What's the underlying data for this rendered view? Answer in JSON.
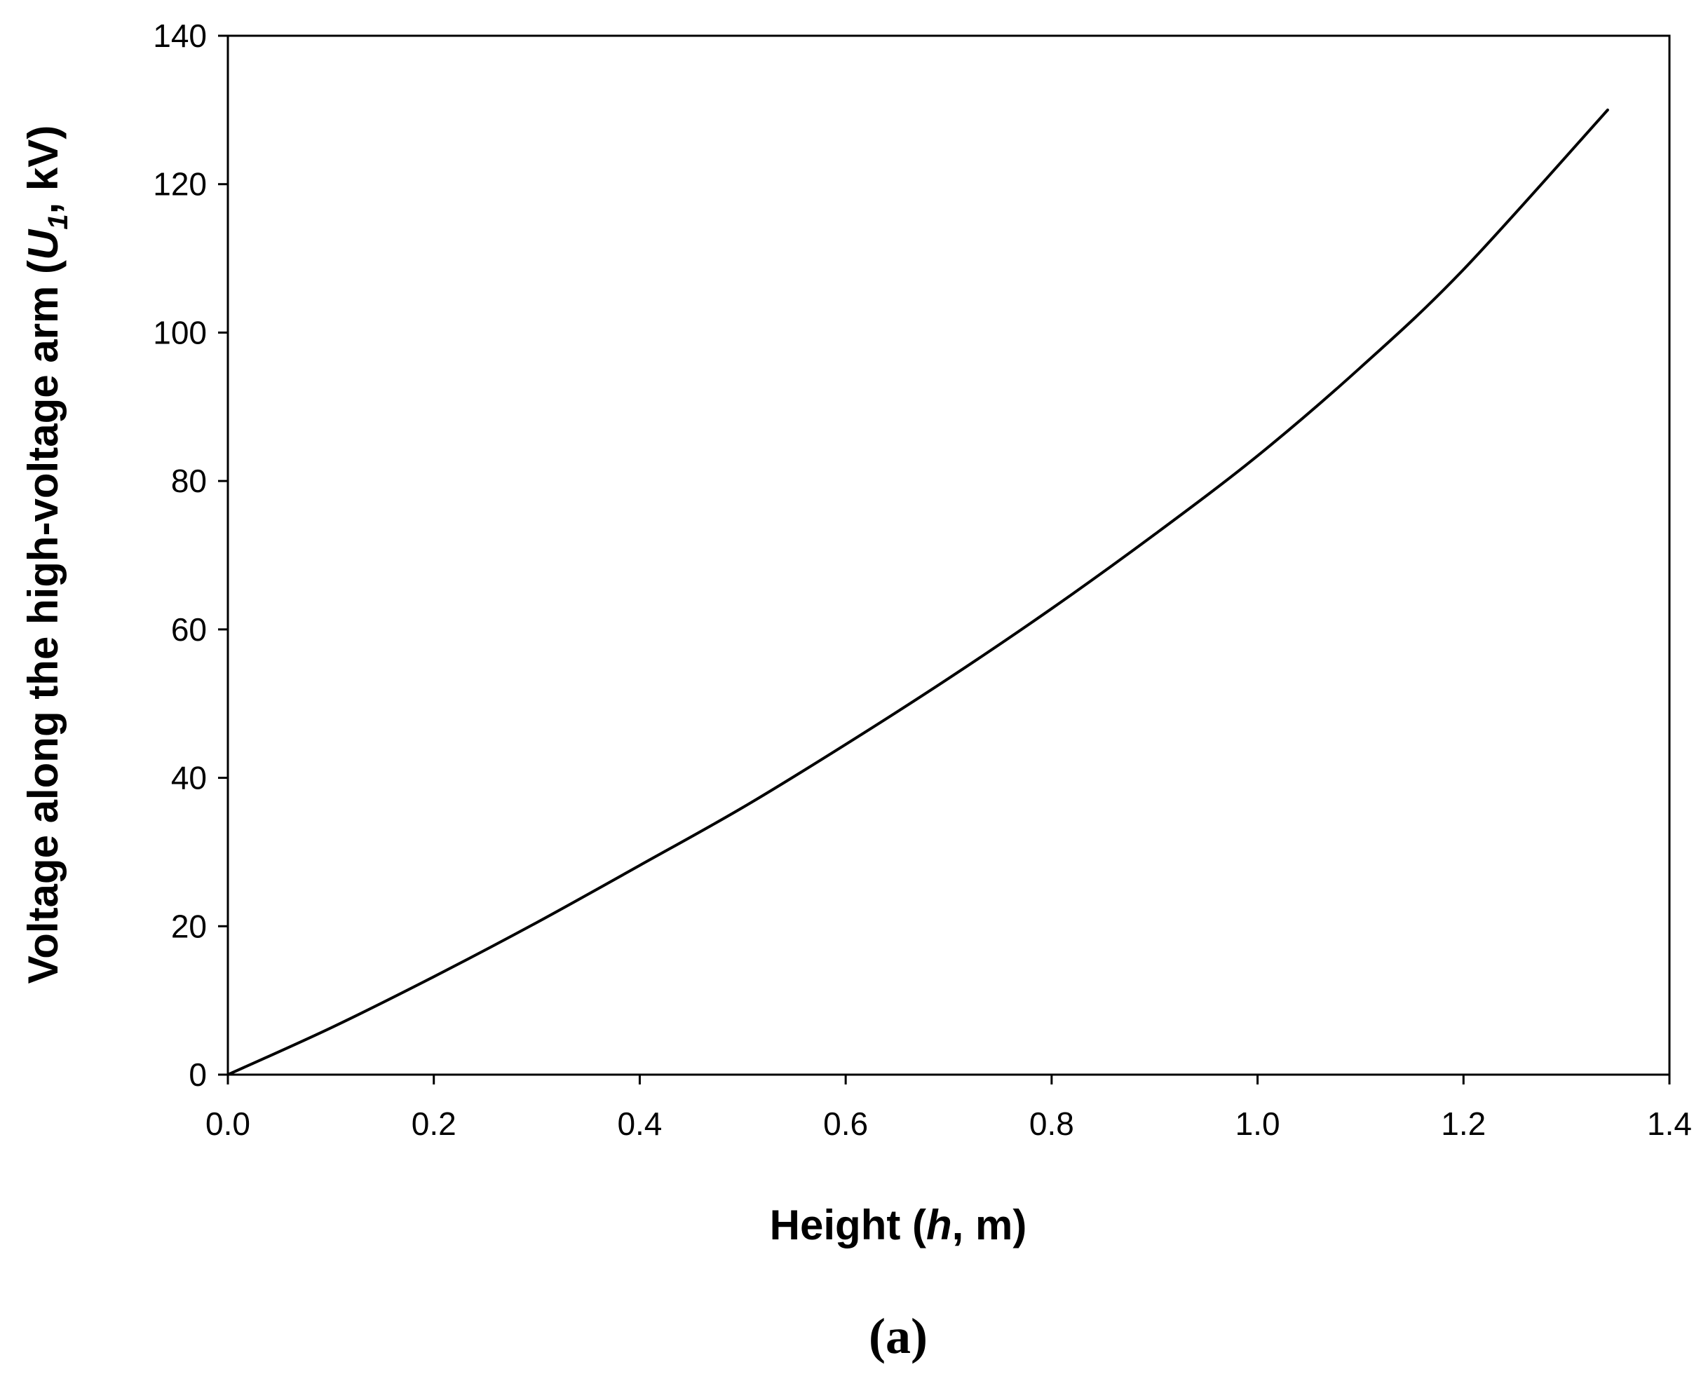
{
  "chart_data": {
    "type": "line",
    "title": "",
    "xlabel": "Height (h, m)",
    "ylabel": "Voltage along the high-voltage arm (U1, kV)",
    "xlim": [
      0,
      1.4
    ],
    "ylim": [
      0,
      140
    ],
    "x_ticks": [
      "0.0",
      "0.2",
      "0.4",
      "0.6",
      "0.8",
      "1.0",
      "1.2",
      "1.4"
    ],
    "y_ticks": [
      "0",
      "20",
      "40",
      "60",
      "80",
      "100",
      "120",
      "140"
    ],
    "grid": false,
    "legend": "none",
    "caption": "(a)",
    "series": [
      {
        "color": "#000000",
        "x": [
          0.0,
          0.1,
          0.2,
          0.3,
          0.4,
          0.5,
          0.6,
          0.7,
          0.8,
          0.9,
          1.0,
          1.1,
          1.2,
          1.34
        ],
        "y": [
          0,
          6.3,
          13.2,
          20.5,
          28.2,
          36.0,
          44.5,
          53.4,
          62.8,
          72.8,
          83.4,
          95.3,
          108.5,
          130.0
        ]
      }
    ]
  }
}
